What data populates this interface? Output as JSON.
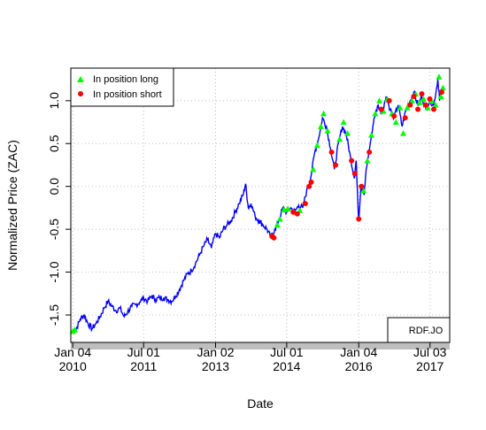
{
  "chart_data": {
    "type": "line",
    "title": "",
    "xlabel": "Date",
    "ylabel": "Normalized Price (ZAC)",
    "xlim": [
      "2009-12-20",
      "2017-12-01"
    ],
    "ylim": [
      -1.82,
      1.38
    ],
    "x_ticks": [
      {
        "date": "2010-01-04",
        "line1": "Jan 04",
        "line2": "2010"
      },
      {
        "date": "2011-07-01",
        "line1": "Jul 01",
        "line2": "2011"
      },
      {
        "date": "2013-01-02",
        "line1": "Jan 02",
        "line2": "2013"
      },
      {
        "date": "2014-07-01",
        "line1": "Jul 01",
        "line2": "2014"
      },
      {
        "date": "2016-01-04",
        "line1": "Jan 04",
        "line2": "2016"
      },
      {
        "date": "2017-07-03",
        "line1": "Jul 03",
        "line2": "2017"
      }
    ],
    "y_ticks": [
      {
        "value": -1.5,
        "label": "-1.5"
      },
      {
        "value": -1.0,
        "label": "-1.0"
      },
      {
        "value": -0.5,
        "label": "-0.5"
      },
      {
        "value": 0.0,
        "label": "0.0"
      },
      {
        "value": 0.5,
        "label": "0.5"
      },
      {
        "value": 1.0,
        "label": "1.0"
      }
    ],
    "grid": true,
    "legend_position": "top-left",
    "series": [
      {
        "name": "",
        "color": "#0000ff",
        "points": [
          [
            "2010-01-04",
            -1.68
          ],
          [
            "2010-02-01",
            -1.66
          ],
          [
            "2010-03-01",
            -1.55
          ],
          [
            "2010-04-01",
            -1.5
          ],
          [
            "2010-05-01",
            -1.6
          ],
          [
            "2010-06-01",
            -1.66
          ],
          [
            "2010-07-01",
            -1.6
          ],
          [
            "2010-08-01",
            -1.52
          ],
          [
            "2010-09-01",
            -1.42
          ],
          [
            "2010-10-01",
            -1.34
          ],
          [
            "2010-11-01",
            -1.4
          ],
          [
            "2010-12-01",
            -1.45
          ],
          [
            "2011-01-01",
            -1.42
          ],
          [
            "2011-02-01",
            -1.52
          ],
          [
            "2011-03-01",
            -1.46
          ],
          [
            "2011-04-01",
            -1.4
          ],
          [
            "2011-05-01",
            -1.38
          ],
          [
            "2011-06-01",
            -1.35
          ],
          [
            "2011-07-01",
            -1.3
          ],
          [
            "2011-08-01",
            -1.34
          ],
          [
            "2011-09-01",
            -1.28
          ],
          [
            "2011-10-01",
            -1.32
          ],
          [
            "2011-11-01",
            -1.3
          ],
          [
            "2011-12-01",
            -1.3
          ],
          [
            "2012-01-01",
            -1.32
          ],
          [
            "2012-02-01",
            -1.34
          ],
          [
            "2012-03-01",
            -1.28
          ],
          [
            "2012-04-01",
            -1.2
          ],
          [
            "2012-05-01",
            -1.1
          ],
          [
            "2012-06-01",
            -1.02
          ],
          [
            "2012-07-01",
            -0.98
          ],
          [
            "2012-08-01",
            -0.9
          ],
          [
            "2012-09-01",
            -0.8
          ],
          [
            "2012-10-01",
            -0.7
          ],
          [
            "2012-11-01",
            -0.62
          ],
          [
            "2012-12-01",
            -0.72
          ],
          [
            "2013-01-01",
            -0.55
          ],
          [
            "2013-02-01",
            -0.6
          ],
          [
            "2013-03-01",
            -0.5
          ],
          [
            "2013-04-01",
            -0.45
          ],
          [
            "2013-05-01",
            -0.4
          ],
          [
            "2013-06-01",
            -0.3
          ],
          [
            "2013-07-01",
            -0.2
          ],
          [
            "2013-08-01",
            -0.1
          ],
          [
            "2013-08-20",
            0.03
          ],
          [
            "2013-09-10",
            -0.25
          ],
          [
            "2013-10-01",
            -0.2
          ],
          [
            "2013-11-01",
            -0.35
          ],
          [
            "2013-12-01",
            -0.4
          ],
          [
            "2014-01-01",
            -0.45
          ],
          [
            "2014-02-01",
            -0.5
          ],
          [
            "2014-03-01",
            -0.6
          ],
          [
            "2014-04-01",
            -0.5
          ],
          [
            "2014-05-01",
            -0.4
          ],
          [
            "2014-06-01",
            -0.25
          ],
          [
            "2014-07-01",
            -0.3
          ],
          [
            "2014-08-01",
            -0.25
          ],
          [
            "2014-09-01",
            -0.3
          ],
          [
            "2014-10-01",
            -0.22
          ],
          [
            "2014-11-01",
            -0.25
          ],
          [
            "2014-12-01",
            -0.05
          ],
          [
            "2015-01-01",
            0.1
          ],
          [
            "2015-02-01",
            0.4
          ],
          [
            "2015-03-01",
            0.55
          ],
          [
            "2015-04-01",
            0.8
          ],
          [
            "2015-05-01",
            0.7
          ],
          [
            "2015-06-01",
            0.45
          ],
          [
            "2015-07-01",
            0.2
          ],
          [
            "2015-08-01",
            0.5
          ],
          [
            "2015-09-01",
            0.7
          ],
          [
            "2015-10-01",
            0.6
          ],
          [
            "2015-11-01",
            0.35
          ],
          [
            "2015-12-01",
            0.1
          ],
          [
            "2015-12-15",
            0.3
          ],
          [
            "2016-01-04",
            -0.4
          ],
          [
            "2016-01-20",
            0.0
          ],
          [
            "2016-02-15",
            -0.1
          ],
          [
            "2016-03-01",
            0.2
          ],
          [
            "2016-04-01",
            0.5
          ],
          [
            "2016-05-01",
            0.8
          ],
          [
            "2016-06-01",
            0.95
          ],
          [
            "2016-07-01",
            0.85
          ],
          [
            "2016-08-01",
            1.05
          ],
          [
            "2016-09-01",
            0.9
          ],
          [
            "2016-10-01",
            0.8
          ],
          [
            "2016-11-01",
            0.95
          ],
          [
            "2016-12-01",
            0.7
          ],
          [
            "2017-01-01",
            0.9
          ],
          [
            "2017-02-01",
            1.0
          ],
          [
            "2017-03-01",
            1.1
          ],
          [
            "2017-04-01",
            0.95
          ],
          [
            "2017-05-01",
            1.05
          ],
          [
            "2017-06-01",
            0.9
          ],
          [
            "2017-07-01",
            1.0
          ],
          [
            "2017-08-01",
            0.95
          ],
          [
            "2017-09-01",
            1.25
          ],
          [
            "2017-09-15",
            1.0
          ],
          [
            "2017-10-01",
            1.15
          ]
        ]
      }
    ],
    "markers": [
      {
        "name": "In position long",
        "shape": "triangle",
        "color": "#00ff00",
        "points": [
          [
            "2010-01-04",
            -1.69
          ],
          [
            "2010-01-20",
            -1.67
          ],
          [
            "2014-04-20",
            -0.45
          ],
          [
            "2014-05-10",
            -0.38
          ],
          [
            "2014-06-10",
            -0.27
          ],
          [
            "2014-07-10",
            -0.26
          ],
          [
            "2014-10-10",
            -0.28
          ],
          [
            "2015-01-20",
            0.2
          ],
          [
            "2015-02-20",
            0.48
          ],
          [
            "2015-03-20",
            0.7
          ],
          [
            "2015-04-10",
            0.85
          ],
          [
            "2015-05-10",
            0.65
          ],
          [
            "2015-08-10",
            0.55
          ],
          [
            "2015-09-10",
            0.75
          ],
          [
            "2015-10-10",
            0.62
          ],
          [
            "2016-02-10",
            -0.05
          ],
          [
            "2016-03-10",
            0.3
          ],
          [
            "2016-04-10",
            0.6
          ],
          [
            "2016-05-10",
            0.85
          ],
          [
            "2016-06-10",
            1.0
          ],
          [
            "2016-07-10",
            0.88
          ],
          [
            "2016-08-10",
            1.02
          ],
          [
            "2016-09-15",
            0.85
          ],
          [
            "2016-10-15",
            0.75
          ],
          [
            "2016-11-15",
            0.92
          ],
          [
            "2016-12-10",
            0.62
          ],
          [
            "2017-01-10",
            0.92
          ],
          [
            "2017-02-15",
            1.0
          ],
          [
            "2017-03-15",
            1.08
          ],
          [
            "2017-04-15",
            0.98
          ],
          [
            "2017-05-15",
            1.02
          ],
          [
            "2017-06-15",
            0.92
          ],
          [
            "2017-07-15",
            1.0
          ],
          [
            "2017-08-15",
            0.95
          ],
          [
            "2017-09-10",
            1.28
          ],
          [
            "2017-09-25",
            1.05
          ],
          [
            "2017-10-10",
            1.15
          ]
        ]
      },
      {
        "name": "In position short",
        "shape": "circle",
        "color": "#ff0000",
        "points": [
          [
            "2014-03-10",
            -0.58
          ],
          [
            "2014-03-25",
            -0.6
          ],
          [
            "2014-08-20",
            -0.3
          ],
          [
            "2014-09-20",
            -0.32
          ],
          [
            "2014-11-20",
            -0.2
          ],
          [
            "2014-12-20",
            0.0
          ],
          [
            "2015-01-05",
            0.05
          ],
          [
            "2015-06-10",
            0.4
          ],
          [
            "2015-07-10",
            0.25
          ],
          [
            "2015-11-10",
            0.3
          ],
          [
            "2015-12-05",
            0.15
          ],
          [
            "2016-01-04",
            -0.38
          ],
          [
            "2016-01-25",
            0.0
          ],
          [
            "2016-03-25",
            0.4
          ],
          [
            "2016-06-25",
            0.9
          ],
          [
            "2016-08-25",
            1.0
          ],
          [
            "2016-10-01",
            0.82
          ],
          [
            "2016-12-25",
            0.8
          ],
          [
            "2017-02-01",
            0.95
          ],
          [
            "2017-03-01",
            1.05
          ],
          [
            "2017-04-01",
            0.9
          ],
          [
            "2017-05-01",
            1.08
          ],
          [
            "2017-06-01",
            0.95
          ],
          [
            "2017-07-01",
            1.02
          ],
          [
            "2017-08-01",
            0.9
          ],
          [
            "2017-10-01",
            1.1
          ]
        ]
      }
    ],
    "legend": [
      {
        "label": "In position long",
        "shape": "triangle",
        "color": "#00ff00"
      },
      {
        "label": "In position short",
        "shape": "circle",
        "color": "#ff0000"
      }
    ],
    "tag": "RDF.JO"
  }
}
